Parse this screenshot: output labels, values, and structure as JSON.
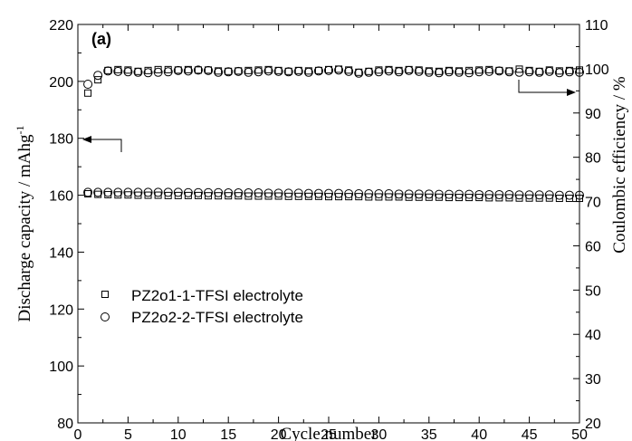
{
  "chart_data": {
    "type": "scatter",
    "panel_label": "(a)",
    "xlabel": "Cycle number",
    "ylabel_left": "Discharge capacity / mAhg",
    "ylabel_left_sup": "-1",
    "ylabel_right": "Coulombic efficiency / %",
    "xlim": [
      0,
      50
    ],
    "ylim_left": [
      80,
      220
    ],
    "ylim_right": [
      20,
      110
    ],
    "xticks": [
      "0",
      "5",
      "10",
      "15",
      "20",
      "25",
      "30",
      "35",
      "40",
      "45",
      "50"
    ],
    "yticks_left": [
      "80",
      "100",
      "120",
      "140",
      "160",
      "180",
      "200",
      "220"
    ],
    "yticks_right": [
      "20",
      "30",
      "40",
      "50",
      "60",
      "70",
      "80",
      "90",
      "100",
      "110"
    ],
    "legend": [
      "PZ2o1-1-TFSI electrolyte",
      "PZ2o2-2-TFSI electrolyte"
    ],
    "legend_position": "bottom-left",
    "series": [
      {
        "name": "PZ2o1-1-TFSI electrolyte",
        "marker": "square",
        "metric": "discharge capacity",
        "axis": "left",
        "x": [
          1,
          2,
          3,
          4,
          5,
          6,
          7,
          8,
          9,
          10,
          11,
          12,
          13,
          14,
          15,
          16,
          17,
          18,
          19,
          20,
          21,
          22,
          23,
          24,
          25,
          26,
          27,
          28,
          29,
          30,
          31,
          32,
          33,
          34,
          35,
          36,
          37,
          38,
          39,
          40,
          41,
          42,
          43,
          44,
          45,
          46,
          47,
          48,
          49,
          50
        ],
        "y": [
          160.5,
          160.3,
          160.2,
          160.1,
          160.1,
          160.0,
          160.0,
          160.0,
          159.9,
          159.9,
          159.9,
          159.9,
          159.8,
          159.8,
          159.8,
          159.8,
          159.7,
          159.7,
          159.7,
          159.7,
          159.6,
          159.6,
          159.6,
          159.6,
          159.5,
          159.5,
          159.5,
          159.5,
          159.4,
          159.4,
          159.4,
          159.4,
          159.3,
          159.3,
          159.3,
          159.3,
          159.2,
          159.2,
          159.2,
          159.2,
          159.1,
          159.1,
          159.1,
          159.0,
          159.0,
          159.0,
          159.0,
          158.9,
          158.9,
          158.9
        ]
      },
      {
        "name": "PZ2o1-1-TFSI electrolyte",
        "marker": "square",
        "metric": "coulombic efficiency",
        "axis": "right",
        "x": [
          1,
          2,
          3,
          4,
          5,
          6,
          7,
          8,
          9,
          10,
          11,
          12,
          13,
          14,
          15,
          16,
          17,
          18,
          19,
          20,
          21,
          22,
          23,
          24,
          25,
          26,
          27,
          28,
          29,
          30,
          31,
          32,
          33,
          34,
          35,
          36,
          37,
          38,
          39,
          40,
          41,
          42,
          43,
          44,
          45,
          46,
          47,
          48,
          49,
          50
        ],
        "y": [
          94.5,
          97.5,
          99.6,
          99.8,
          99.7,
          99.4,
          99.6,
          99.8,
          99.8,
          99.7,
          99.8,
          99.7,
          99.7,
          99.5,
          99.4,
          99.5,
          99.6,
          99.7,
          99.8,
          99.6,
          99.4,
          99.6,
          99.5,
          99.6,
          99.8,
          99.9,
          99.7,
          99.2,
          99.4,
          99.7,
          99.8,
          99.6,
          99.8,
          99.7,
          99.5,
          99.4,
          99.6,
          99.5,
          99.6,
          99.7,
          99.8,
          99.6,
          99.5,
          99.9,
          99.6,
          99.4,
          99.7,
          99.5,
          99.6,
          99.7
        ]
      },
      {
        "name": "PZ2o2-2-TFSI electrolyte",
        "marker": "circle",
        "metric": "discharge capacity",
        "axis": "left",
        "x": [
          1,
          2,
          3,
          4,
          5,
          6,
          7,
          8,
          9,
          10,
          11,
          12,
          13,
          14,
          15,
          16,
          17,
          18,
          19,
          20,
          21,
          22,
          23,
          24,
          25,
          26,
          27,
          28,
          29,
          30,
          31,
          32,
          33,
          34,
          35,
          36,
          37,
          38,
          39,
          40,
          41,
          42,
          43,
          44,
          45,
          46,
          47,
          48,
          49,
          50
        ],
        "y": [
          161.0,
          161.0,
          161.0,
          161.0,
          161.0,
          161.0,
          161.0,
          161.0,
          161.0,
          161.0,
          160.9,
          160.9,
          160.9,
          160.9,
          160.8,
          160.8,
          160.8,
          160.8,
          160.7,
          160.7,
          160.7,
          160.7,
          160.6,
          160.6,
          160.6,
          160.6,
          160.5,
          160.5,
          160.5,
          160.5,
          160.5,
          160.4,
          160.4,
          160.4,
          160.4,
          160.3,
          160.3,
          160.3,
          160.3,
          160.2,
          160.2,
          160.2,
          160.2,
          160.1,
          160.1,
          160.1,
          160.1,
          160.0,
          160.0,
          160.0
        ]
      },
      {
        "name": "PZ2o2-2-TFSI electrolyte",
        "marker": "circle",
        "metric": "coulombic efficiency",
        "axis": "right",
        "x": [
          1,
          2,
          3,
          4,
          5,
          6,
          7,
          8,
          9,
          10,
          11,
          12,
          13,
          14,
          15,
          16,
          17,
          18,
          19,
          20,
          21,
          22,
          23,
          24,
          25,
          26,
          27,
          28,
          29,
          30,
          31,
          32,
          33,
          34,
          35,
          36,
          37,
          38,
          39,
          40,
          41,
          42,
          43,
          44,
          45,
          46,
          47,
          48,
          49,
          50
        ],
        "y": [
          96.5,
          98.5,
          99.5,
          99.4,
          99.3,
          99.2,
          99.1,
          99.2,
          99.3,
          99.6,
          99.5,
          99.7,
          99.6,
          99.2,
          99.3,
          99.4,
          99.2,
          99.3,
          99.5,
          99.4,
          99.3,
          99.4,
          99.2,
          99.5,
          99.6,
          99.7,
          99.4,
          99.0,
          99.2,
          99.3,
          99.5,
          99.3,
          99.6,
          99.4,
          99.2,
          99.1,
          99.3,
          99.2,
          99.1,
          99.3,
          99.4,
          99.5,
          99.3,
          99.2,
          99.3,
          99.2,
          99.4,
          99.1,
          99.3,
          99.2
        ]
      }
    ]
  }
}
